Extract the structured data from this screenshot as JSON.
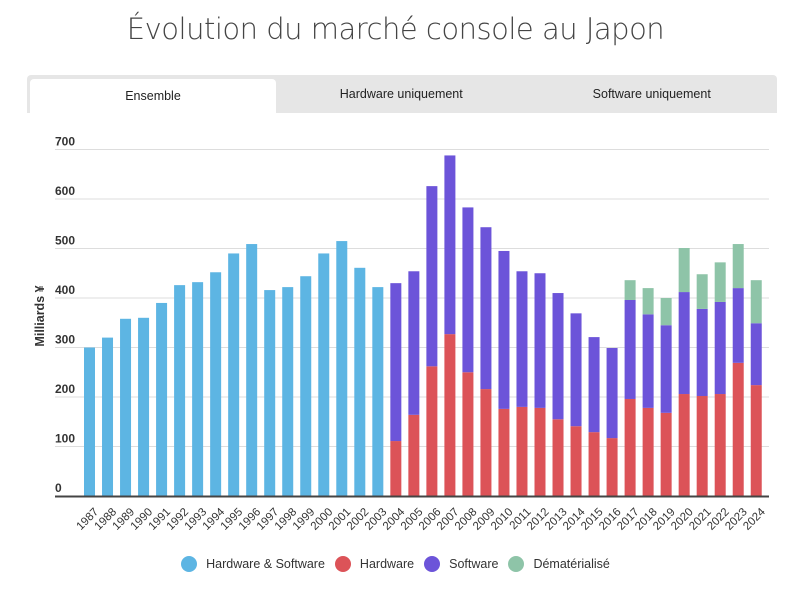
{
  "title": "Évolution du marché console au Japon",
  "tabs": [
    {
      "label": "Ensemble",
      "active": true
    },
    {
      "label": "Hardware uniquement",
      "active": false
    },
    {
      "label": "Software uniquement",
      "active": false
    }
  ],
  "chart_data": {
    "type": "bar",
    "stacked": true,
    "title": "Évolution du marché console au Japon",
    "xlabel": "",
    "ylabel": "Milliards ¥",
    "ylim": [
      0,
      700
    ],
    "yticks": [
      0,
      100,
      200,
      300,
      400,
      500,
      600,
      700
    ],
    "grid": true,
    "legend_position": "bottom",
    "categories": [
      "1987",
      "1988",
      "1989",
      "1990",
      "1991",
      "1992",
      "1993",
      "1994",
      "1995",
      "1996",
      "1997",
      "1998",
      "1999",
      "2000",
      "2001",
      "2002",
      "2003",
      "2004",
      "2005",
      "2006",
      "2007",
      "2008",
      "2009",
      "2010",
      "2011",
      "2012",
      "2013",
      "2014",
      "2015",
      "2016",
      "2017",
      "2018",
      "2019",
      "2020",
      "2021",
      "2022",
      "2023",
      "2024"
    ],
    "series": [
      {
        "name": "Hardware & Software",
        "color": "#5db5e3",
        "values": [
          300,
          320,
          358,
          360,
          390,
          426,
          432,
          452,
          490,
          509,
          416,
          422,
          444,
          490,
          515,
          461,
          422,
          null,
          null,
          null,
          null,
          null,
          null,
          null,
          null,
          null,
          null,
          null,
          null,
          null,
          null,
          null,
          null,
          null,
          null,
          null,
          null,
          null
        ]
      },
      {
        "name": "Hardware",
        "color": "#dc5358",
        "values": [
          null,
          null,
          null,
          null,
          null,
          null,
          null,
          null,
          null,
          null,
          null,
          null,
          null,
          null,
          null,
          null,
          null,
          111,
          164,
          262,
          327,
          250,
          216,
          176,
          180,
          178,
          155,
          141,
          129,
          117,
          196,
          178,
          168,
          206,
          202,
          206,
          269,
          224
        ]
      },
      {
        "name": "Software",
        "color": "#6c54d9",
        "values": [
          null,
          null,
          null,
          null,
          null,
          null,
          null,
          null,
          null,
          null,
          null,
          null,
          null,
          null,
          null,
          null,
          null,
          319,
          290,
          364,
          361,
          333,
          327,
          319,
          274,
          272,
          255,
          228,
          192,
          182,
          200,
          189,
          177,
          206,
          176,
          186,
          151,
          125
        ]
      },
      {
        "name": "Dématérialisé",
        "color": "#8ec4a8",
        "values": [
          null,
          null,
          null,
          null,
          null,
          null,
          null,
          null,
          null,
          null,
          null,
          null,
          null,
          null,
          null,
          null,
          null,
          null,
          null,
          null,
          null,
          null,
          null,
          null,
          null,
          null,
          null,
          null,
          null,
          null,
          40,
          53,
          55,
          89,
          70,
          80,
          89,
          87
        ]
      }
    ]
  }
}
